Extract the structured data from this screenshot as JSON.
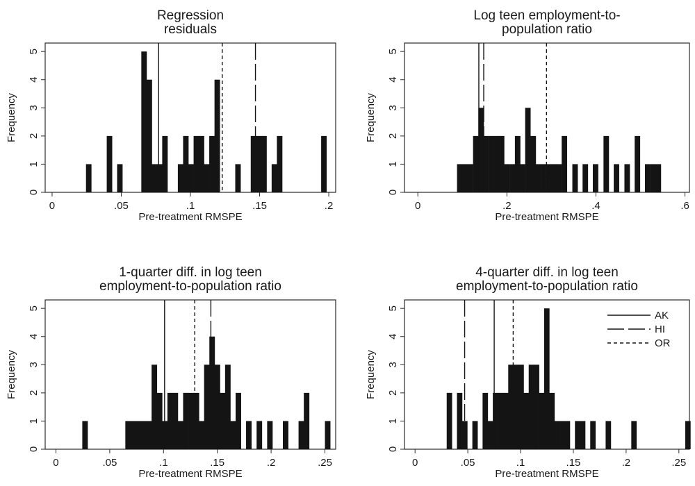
{
  "chart_data": [
    {
      "type": "histogram",
      "title_lines": [
        "Regression",
        "residuals"
      ],
      "xlabel": "Pre-treatment RMSPE",
      "ylabel": "Frequency",
      "xlim": [
        -0.005,
        0.205
      ],
      "ylim": [
        0,
        5.3
      ],
      "xticks": [
        {
          "v": 0,
          "label": "0"
        },
        {
          "v": 0.05,
          "label": ".05"
        },
        {
          "v": 0.1,
          "label": ".1"
        },
        {
          "v": 0.15,
          "label": ".15"
        },
        {
          "v": 0.2,
          "label": ".2"
        }
      ],
      "yticks": [
        0,
        1,
        2,
        3,
        4,
        5
      ],
      "bin_width": 0.00378,
      "bins": [
        {
          "x0": 0.0245,
          "count": 1
        },
        {
          "x0": 0.0395,
          "count": 2
        },
        {
          "x0": 0.047,
          "count": 1
        },
        {
          "x0": 0.0645,
          "count": 5
        },
        {
          "x0": 0.0683,
          "count": 4
        },
        {
          "x0": 0.0721,
          "count": 1
        },
        {
          "x0": 0.0758,
          "count": 1
        },
        {
          "x0": 0.0796,
          "count": 2
        },
        {
          "x0": 0.0909,
          "count": 1
        },
        {
          "x0": 0.0947,
          "count": 2
        },
        {
          "x0": 0.0985,
          "count": 1
        },
        {
          "x0": 0.1023,
          "count": 2
        },
        {
          "x0": 0.106,
          "count": 2
        },
        {
          "x0": 0.1098,
          "count": 1
        },
        {
          "x0": 0.1136,
          "count": 2
        },
        {
          "x0": 0.1174,
          "count": 4
        },
        {
          "x0": 0.1324,
          "count": 1
        },
        {
          "x0": 0.1436,
          "count": 2
        },
        {
          "x0": 0.1474,
          "count": 2
        },
        {
          "x0": 0.1512,
          "count": 2
        },
        {
          "x0": 0.1587,
          "count": 1
        },
        {
          "x0": 0.1625,
          "count": 2
        },
        {
          "x0": 0.1945,
          "count": 2
        }
      ],
      "vlines": [
        {
          "state": "AK",
          "x": 0.077
        },
        {
          "state": "HI",
          "x": 0.147
        },
        {
          "state": "OR",
          "x": 0.123
        }
      ],
      "legend": false
    },
    {
      "type": "histogram",
      "title_lines": [
        "Log teen employment-to-",
        "population ratio"
      ],
      "xlabel": "Pre-treatment RMSPE",
      "ylabel": "Frequency",
      "xlim": [
        -0.03,
        0.61
      ],
      "ylim": [
        0,
        5.3
      ],
      "xticks": [
        {
          "v": 0,
          "label": "0"
        },
        {
          "v": 0.2,
          "label": ".2"
        },
        {
          "v": 0.4,
          "label": ".4"
        },
        {
          "v": 0.6,
          "label": ".6"
        }
      ],
      "yticks": [
        0,
        1,
        2,
        3,
        4,
        5
      ],
      "bin_width": 0.0117,
      "bins": [
        {
          "x0": 0.088,
          "count": 1
        },
        {
          "x0": 0.1,
          "count": 1
        },
        {
          "x0": 0.112,
          "count": 1
        },
        {
          "x0": 0.124,
          "count": 2
        },
        {
          "x0": 0.136,
          "count": 3
        },
        {
          "x0": 0.147,
          "count": 2
        },
        {
          "x0": 0.159,
          "count": 2
        },
        {
          "x0": 0.171,
          "count": 2
        },
        {
          "x0": 0.182,
          "count": 2
        },
        {
          "x0": 0.194,
          "count": 1
        },
        {
          "x0": 0.206,
          "count": 1
        },
        {
          "x0": 0.218,
          "count": 2
        },
        {
          "x0": 0.229,
          "count": 1
        },
        {
          "x0": 0.241,
          "count": 3
        },
        {
          "x0": 0.253,
          "count": 2
        },
        {
          "x0": 0.264,
          "count": 1
        },
        {
          "x0": 0.276,
          "count": 1
        },
        {
          "x0": 0.288,
          "count": 1
        },
        {
          "x0": 0.3,
          "count": 1
        },
        {
          "x0": 0.311,
          "count": 1
        },
        {
          "x0": 0.323,
          "count": 2
        },
        {
          "x0": 0.347,
          "count": 1
        },
        {
          "x0": 0.37,
          "count": 1
        },
        {
          "x0": 0.393,
          "count": 1
        },
        {
          "x0": 0.417,
          "count": 2
        },
        {
          "x0": 0.44,
          "count": 1
        },
        {
          "x0": 0.464,
          "count": 1
        },
        {
          "x0": 0.487,
          "count": 2
        },
        {
          "x0": 0.51,
          "count": 1
        },
        {
          "x0": 0.522,
          "count": 1
        },
        {
          "x0": 0.534,
          "count": 1
        }
      ],
      "vlines": [
        {
          "state": "AK",
          "x": 0.137
        },
        {
          "state": "HI",
          "x": 0.148
        },
        {
          "state": "OR",
          "x": 0.289
        }
      ],
      "legend": false
    },
    {
      "type": "histogram",
      "title_lines": [
        "1-quarter diff. in log teen",
        "employment-to-population ratio"
      ],
      "xlabel": "Pre-treatment RMSPE",
      "ylabel": "Frequency",
      "xlim": [
        -0.01,
        0.26
      ],
      "ylim": [
        0,
        5.3
      ],
      "xticks": [
        {
          "v": 0,
          "label": "0"
        },
        {
          "v": 0.05,
          "label": ".05"
        },
        {
          "v": 0.1,
          "label": ".1"
        },
        {
          "v": 0.15,
          "label": ".15"
        },
        {
          "v": 0.2,
          "label": ".2"
        },
        {
          "v": 0.25,
          "label": ".25"
        }
      ],
      "yticks": [
        0,
        1,
        2,
        3,
        4,
        5
      ],
      "bin_width": 0.00488,
      "bins": [
        {
          "x0": 0.0245,
          "count": 1
        },
        {
          "x0": 0.0645,
          "count": 1
        },
        {
          "x0": 0.0694,
          "count": 1
        },
        {
          "x0": 0.0743,
          "count": 1
        },
        {
          "x0": 0.0792,
          "count": 1
        },
        {
          "x0": 0.084,
          "count": 1
        },
        {
          "x0": 0.0889,
          "count": 3
        },
        {
          "x0": 0.0938,
          "count": 2
        },
        {
          "x0": 0.0987,
          "count": 1
        },
        {
          "x0": 0.1036,
          "count": 2
        },
        {
          "x0": 0.1084,
          "count": 2
        },
        {
          "x0": 0.1133,
          "count": 1
        },
        {
          "x0": 0.1182,
          "count": 2
        },
        {
          "x0": 0.1231,
          "count": 2
        },
        {
          "x0": 0.128,
          "count": 2
        },
        {
          "x0": 0.1328,
          "count": 1
        },
        {
          "x0": 0.1377,
          "count": 3
        },
        {
          "x0": 0.1426,
          "count": 4
        },
        {
          "x0": 0.1475,
          "count": 3
        },
        {
          "x0": 0.1523,
          "count": 2
        },
        {
          "x0": 0.1572,
          "count": 3
        },
        {
          "x0": 0.1621,
          "count": 1
        },
        {
          "x0": 0.167,
          "count": 2
        },
        {
          "x0": 0.1767,
          "count": 1
        },
        {
          "x0": 0.1865,
          "count": 1
        },
        {
          "x0": 0.1963,
          "count": 1
        },
        {
          "x0": 0.2109,
          "count": 1
        },
        {
          "x0": 0.2255,
          "count": 1
        },
        {
          "x0": 0.2304,
          "count": 2
        },
        {
          "x0": 0.25,
          "count": 1
        }
      ],
      "vlines": [
        {
          "state": "AK",
          "x": 0.101
        },
        {
          "state": "HI",
          "x": 0.144
        },
        {
          "state": "OR",
          "x": 0.129
        }
      ],
      "legend": false
    },
    {
      "type": "histogram",
      "title_lines": [
        "4-quarter diff. in log teen",
        "employment-to-population ratio"
      ],
      "xlabel": "Pre-treatment RMSPE",
      "ylabel": "Frequency",
      "xlim": [
        -0.01,
        0.26
      ],
      "ylim": [
        0,
        5.3
      ],
      "xticks": [
        {
          "v": 0,
          "label": "0"
        },
        {
          "v": 0.05,
          "label": ".05"
        },
        {
          "v": 0.1,
          "label": ".1"
        },
        {
          "v": 0.15,
          "label": ".15"
        },
        {
          "v": 0.2,
          "label": ".2"
        },
        {
          "v": 0.25,
          "label": ".25"
        }
      ],
      "yticks": [
        0,
        1,
        2,
        3,
        4,
        5
      ],
      "bin_width": 0.00486,
      "bins": [
        {
          "x0": 0.03,
          "count": 2
        },
        {
          "x0": 0.0397,
          "count": 2
        },
        {
          "x0": 0.0446,
          "count": 1
        },
        {
          "x0": 0.0543,
          "count": 1
        },
        {
          "x0": 0.064,
          "count": 2
        },
        {
          "x0": 0.0689,
          "count": 1
        },
        {
          "x0": 0.0737,
          "count": 2
        },
        {
          "x0": 0.0786,
          "count": 2
        },
        {
          "x0": 0.0834,
          "count": 2
        },
        {
          "x0": 0.0883,
          "count": 3
        },
        {
          "x0": 0.0932,
          "count": 3
        },
        {
          "x0": 0.098,
          "count": 3
        },
        {
          "x0": 0.1029,
          "count": 2
        },
        {
          "x0": 0.1077,
          "count": 3
        },
        {
          "x0": 0.1126,
          "count": 3
        },
        {
          "x0": 0.1175,
          "count": 2
        },
        {
          "x0": 0.1223,
          "count": 5
        },
        {
          "x0": 0.1272,
          "count": 2
        },
        {
          "x0": 0.132,
          "count": 1
        },
        {
          "x0": 0.1369,
          "count": 1
        },
        {
          "x0": 0.1418,
          "count": 1
        },
        {
          "x0": 0.1515,
          "count": 1
        },
        {
          "x0": 0.1563,
          "count": 1
        },
        {
          "x0": 0.166,
          "count": 1
        },
        {
          "x0": 0.1806,
          "count": 1
        },
        {
          "x0": 0.2049,
          "count": 1
        },
        {
          "x0": 0.256,
          "count": 1
        }
      ],
      "vlines": [
        {
          "state": "AK",
          "x": 0.075
        },
        {
          "state": "HI",
          "x": 0.047
        },
        {
          "state": "OR",
          "x": 0.093
        }
      ],
      "legend": true
    }
  ],
  "legend": [
    {
      "label": "AK",
      "style": "solid"
    },
    {
      "label": "HI",
      "style": "long-dash"
    },
    {
      "label": "OR",
      "style": "short-dash"
    }
  ],
  "colors": {
    "bars": "#141414",
    "lines": "#141414",
    "frame": "#2a2a2a"
  }
}
